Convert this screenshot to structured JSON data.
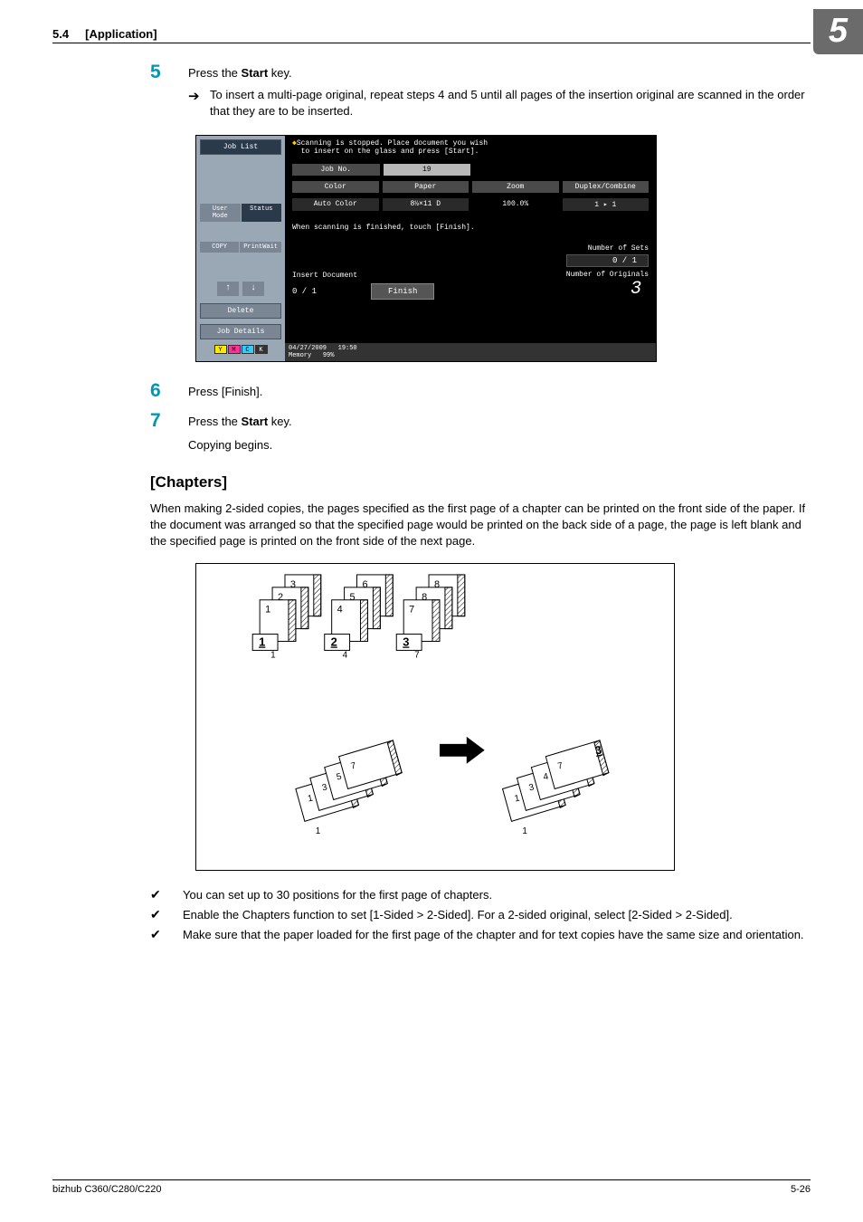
{
  "header": {
    "section_num": "5.4",
    "section_title": "[Application]",
    "chapter_num": "5"
  },
  "steps": {
    "s5": {
      "num": "5",
      "text_prefix": "Press the ",
      "text_bold": "Start",
      "text_suffix": " key.",
      "sub_arrow": "To insert a multi-page original, repeat steps 4 and 5 until all pages of the insertion original are scanned in the order that they are to be inserted."
    },
    "s6": {
      "num": "6",
      "text": "Press [Finish]."
    },
    "s7": {
      "num": "7",
      "text_prefix": "Press the ",
      "text_bold": "Start",
      "text_suffix": " key.",
      "sub": "Copying begins."
    }
  },
  "screenshot": {
    "job_list": "Job List",
    "msg_line1": "Scanning is stopped. Place document you wish",
    "msg_line2": "to insert on the glass and press [Start].",
    "job_no_label": "Job No.",
    "job_no_val": "19",
    "col_color": "Color",
    "col_paper": "Paper",
    "col_zoom": "Zoom",
    "col_combine": "Duplex/Combine",
    "val_color": "Auto Color",
    "val_paper": "8½×11 D",
    "val_zoom": "100.0%",
    "val_combine": "1 ▸ 1",
    "tab_status": "Status",
    "tab_printwait": "PrintWait",
    "tab_usermode": "User Mode",
    "tab_copy": "COPY",
    "info": "When scanning is finished, touch [Finish].",
    "sets_label": "Number of Sets",
    "sets_val": "0 / 1",
    "originals_label": "Number of Originals",
    "originals_val": "3",
    "insert_doc": "Insert Document",
    "insert_val": "0   / 1",
    "finish": "Finish",
    "delete": "Delete",
    "job_details": "Job Details",
    "date": "04/27/2009",
    "time": "19:50",
    "memory": "Memory",
    "memory_val": "99%",
    "toner": {
      "y": "Y",
      "m": "M",
      "c": "C",
      "k": "K"
    },
    "toner_colors": {
      "y": "#ffeb00",
      "m": "#ff3399",
      "c": "#33ccff",
      "k": "#333333"
    }
  },
  "chapters": {
    "title": "[Chapters]",
    "para": "When making 2-sided copies, the pages specified as the first page of a chapter can be printed on the front side of the paper. If the document was arranged so that the specified page would be printed on the back side of a page, the page is left blank and the specified page is printed on the front side of the next page.",
    "checks": [
      "You can set up to 30 positions for the first page of chapters.",
      "Enable the Chapters function to set [1-Sided > 2-Sided]. For a 2-sided original, select [2-Sided > 2-Sided].",
      "Make sure that the paper loaded for the first page of the chapter and for text copies have the same size and orientation."
    ]
  },
  "diagram": {
    "stack_a": [
      {
        "front": "1",
        "back": "1",
        "back_bold": "1"
      },
      {
        "front": "2",
        "back": "3",
        "back_bold": "2"
      },
      {
        "front": "3",
        "back": null
      }
    ],
    "stack_b": [
      {
        "front": "4",
        "back_bold": "2"
      },
      {
        "front": "5",
        "back": "6"
      },
      {
        "front": "6",
        "back": null
      }
    ],
    "stack_c": [
      {
        "front": "7",
        "back_bold": "3"
      },
      {
        "front": "8",
        "back": null
      },
      {
        "front": "8",
        "back": null
      }
    ],
    "output_left": [
      {
        "front": "1",
        "pages": [
          "1",
          "3",
          "5",
          "7"
        ]
      },
      {
        "front": "3",
        "sub": [
          "4",
          "5"
        ]
      },
      {
        "front": "5",
        "sub": [
          "6",
          "7"
        ]
      },
      {
        "front": "7",
        "sub": [
          "8"
        ]
      }
    ],
    "output_right": [
      {
        "front": "1",
        "pages": [
          "1",
          "3",
          "4",
          "6",
          "7"
        ]
      },
      {
        "front": "3",
        "sub": [
          "2",
          "4"
        ]
      },
      {
        "front": "4",
        "sub": [
          "6"
        ]
      },
      {
        "front": "7",
        "sub": [
          "8"
        ]
      }
    ]
  },
  "footer": {
    "model": "bizhub C360/C280/C220",
    "page": "5-26"
  }
}
